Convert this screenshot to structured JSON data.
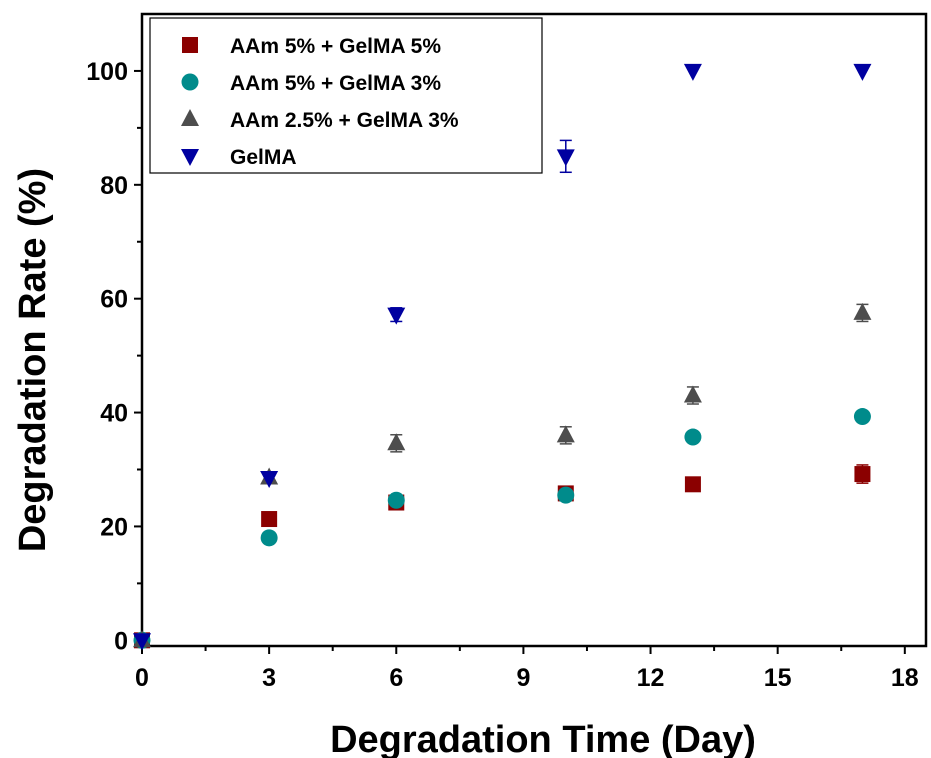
{
  "chart_data": {
    "type": "scatter",
    "xlabel": "Degradation Time (Day)",
    "ylabel": "Degradation Rate (%)",
    "xlim": [
      0,
      18.5
    ],
    "ylim": [
      -1,
      110
    ],
    "xticks": [
      0,
      3,
      6,
      9,
      12,
      15,
      18
    ],
    "yticks": [
      0,
      20,
      40,
      60,
      80,
      100
    ],
    "legend_position": "top-left",
    "series": [
      {
        "name": "AAm 5% + GelMA 5%",
        "marker": "square",
        "color": "#8B0000",
        "x": [
          0,
          3,
          6,
          10,
          13,
          17
        ],
        "y": [
          0,
          21.3,
          24.2,
          25.8,
          27.4,
          29.2
        ],
        "err": [
          0,
          0,
          0,
          0,
          0,
          1.6
        ]
      },
      {
        "name": "AAm 5% + GelMA 3%",
        "marker": "circle",
        "color": "#008B8B",
        "x": [
          0,
          3,
          6,
          10,
          13,
          17
        ],
        "y": [
          0,
          18.0,
          24.6,
          25.5,
          35.7,
          39.3
        ],
        "err": [
          0,
          0,
          0,
          0,
          0,
          0
        ]
      },
      {
        "name": "AAm 2.5% + GelMA 3%",
        "marker": "triangle-up",
        "color": "#4D4D4D",
        "x": [
          0,
          3,
          6,
          10,
          13,
          17
        ],
        "y": [
          0,
          28.6,
          34.6,
          36.0,
          43.0,
          57.5
        ],
        "err": [
          0,
          0,
          1.5,
          1.5,
          1.5,
          1.5
        ]
      },
      {
        "name": "GelMA",
        "marker": "triangle-down",
        "color": "#0000A0",
        "x": [
          0,
          3,
          6,
          10,
          13,
          17
        ],
        "y": [
          0,
          28.5,
          57.2,
          85.0,
          100,
          100
        ],
        "err": [
          0,
          0,
          1.2,
          2.8,
          0,
          0
        ]
      }
    ]
  }
}
